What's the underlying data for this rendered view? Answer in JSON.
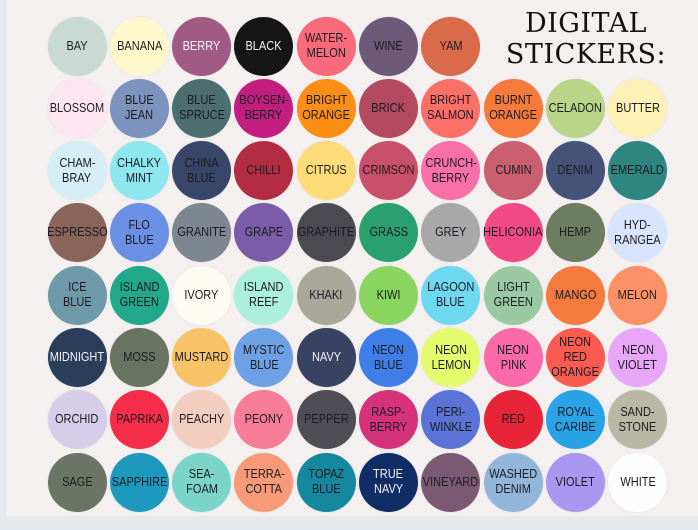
{
  "title": {
    "line1": "DIGITAL",
    "line2": "STICKERS:"
  },
  "background_color": "#f5f0f0",
  "stickers": [
    {
      "label": [
        "BAY"
      ],
      "color": "#c9d9d3"
    },
    {
      "label": [
        "BANANA"
      ],
      "color": "#fdf8cc"
    },
    {
      "label": [
        "BERRY"
      ],
      "color": "#a05a84",
      "light_text": true
    },
    {
      "label": [
        "BLACK"
      ],
      "color": "#151515",
      "light_text": true
    },
    {
      "label": [
        "WATER-",
        "MELON"
      ],
      "color": "#f96a7a"
    },
    {
      "label": [
        "WINE"
      ],
      "color": "#6d5a78"
    },
    {
      "label": [
        "YAM"
      ],
      "color": "#d96a4a"
    },
    {
      "label": [
        "BLOSSOM"
      ],
      "color": "#fde6f0"
    },
    {
      "label": [
        "BLUE",
        "JEAN"
      ],
      "color": "#7b93bd"
    },
    {
      "label": [
        "BLUE",
        "SPRUCE"
      ],
      "color": "#4d6e6e"
    },
    {
      "label": [
        "BOYSEN-",
        "BERRY"
      ],
      "color": "#c21e80"
    },
    {
      "label": [
        "BRIGHT",
        "ORANGE"
      ],
      "color": "#fb8f15"
    },
    {
      "label": [
        "BRICK"
      ],
      "color": "#b34a60"
    },
    {
      "label": [
        "BRIGHT",
        "SALMON"
      ],
      "color": "#fa6f68"
    },
    {
      "label": [
        "BURNT",
        "ORANGE"
      ],
      "color": "#f57a3c"
    },
    {
      "label": [
        "CELADON"
      ],
      "color": "#b9d58a"
    },
    {
      "label": [
        "BUTTER"
      ],
      "color": "#fdf1b7"
    },
    {
      "label": [
        "CHAM-",
        "BRAY"
      ],
      "color": "#d6eef6"
    },
    {
      "label": [
        "CHALKY",
        "MINT"
      ],
      "color": "#8ee6ee"
    },
    {
      "label": [
        "CHINA",
        "BLUE"
      ],
      "color": "#384769"
    },
    {
      "label": [
        "CHILLI"
      ],
      "color": "#b32d42"
    },
    {
      "label": [
        "CITRUS"
      ],
      "color": "#fedc7a"
    },
    {
      "label": [
        "CRIMSON"
      ],
      "color": "#c9506a"
    },
    {
      "label": [
        "CRUNCH-",
        "BERRY"
      ],
      "color": "#f870a7"
    },
    {
      "label": [
        "CUMIN"
      ],
      "color": "#c95f6f"
    },
    {
      "label": [
        "DENIM"
      ],
      "color": "#445377"
    },
    {
      "label": [
        "EMERALD"
      ],
      "color": "#2f8580"
    },
    {
      "label": [
        "ESPRESSO"
      ],
      "color": "#8a6458"
    },
    {
      "label": [
        "FLO",
        "BLUE"
      ],
      "color": "#6c8fe6"
    },
    {
      "label": [
        "GRANITE"
      ],
      "color": "#7e8690"
    },
    {
      "label": [
        "GRAPE"
      ],
      "color": "#7a5ca9"
    },
    {
      "label": [
        "GRAPHITE"
      ],
      "color": "#4a4a50"
    },
    {
      "label": [
        "GRASS"
      ],
      "color": "#2aa070"
    },
    {
      "label": [
        "GREY"
      ],
      "color": "#a8a8a8"
    },
    {
      "label": [
        "HELICONIA"
      ],
      "color": "#f04a86"
    },
    {
      "label": [
        "HEMP"
      ],
      "color": "#6e7d60"
    },
    {
      "label": [
        "HYD-",
        "RANGEA"
      ],
      "color": "#d8e4fb"
    },
    {
      "label": [
        "ICE",
        "BLUE"
      ],
      "color": "#6e99a8"
    },
    {
      "label": [
        "ISLAND",
        "GREEN"
      ],
      "color": "#22a98a"
    },
    {
      "label": [
        "IVORY"
      ],
      "color": "#fdfbf2"
    },
    {
      "label": [
        "ISLAND",
        "REEF"
      ],
      "color": "#aaf0db"
    },
    {
      "label": [
        "KHAKI"
      ],
      "color": "#a8a899"
    },
    {
      "label": [
        "KIWI"
      ],
      "color": "#8ad460"
    },
    {
      "label": [
        "LAGOON",
        "BLUE"
      ],
      "color": "#6ed8f0"
    },
    {
      "label": [
        "LIGHT",
        "GREEN"
      ],
      "color": "#9ac8a3"
    },
    {
      "label": [
        "MANGO"
      ],
      "color": "#f57a40"
    },
    {
      "label": [
        "MELON"
      ],
      "color": "#fb9166"
    },
    {
      "label": [
        "MIDNIGHT"
      ],
      "color": "#2a3e5a",
      "light_text": true
    },
    {
      "label": [
        "MOSS"
      ],
      "color": "#697362"
    },
    {
      "label": [
        "MUSTARD"
      ],
      "color": "#f8c366"
    },
    {
      "label": [
        "MYSTIC",
        "BLUE"
      ],
      "color": "#6da0e4"
    },
    {
      "label": [
        "NAVY"
      ],
      "color": "#384262",
      "light_text": true
    },
    {
      "label": [
        "NEON",
        "BLUE"
      ],
      "color": "#3f7ee6"
    },
    {
      "label": [
        "NEON",
        "LEMON"
      ],
      "color": "#e4fb6e"
    },
    {
      "label": [
        "NEON",
        "PINK"
      ],
      "color": "#fb6aa8"
    },
    {
      "label": [
        "NEON",
        "RED",
        "ORANGE"
      ],
      "color": "#fb5a50"
    },
    {
      "label": [
        "NEON",
        "VIOLET"
      ],
      "color": "#e8a6f8"
    },
    {
      "label": [
        "ORCHID"
      ],
      "color": "#d6cde8"
    },
    {
      "label": [
        "PAPRIKA"
      ],
      "color": "#f52d4a"
    },
    {
      "label": [
        "PEACHY"
      ],
      "color": "#f3cdc0"
    },
    {
      "label": [
        "PEONY"
      ],
      "color": "#f77c98"
    },
    {
      "label": [
        "PEPPER"
      ],
      "color": "#4e4e54"
    },
    {
      "label": [
        "RASP-",
        "BERRY"
      ],
      "color": "#d6327a"
    },
    {
      "label": [
        "PERI-",
        "WINKLE"
      ],
      "color": "#5b72d6"
    },
    {
      "label": [
        "RED"
      ],
      "color": "#e82438"
    },
    {
      "label": [
        "ROYAL",
        "CARIBE"
      ],
      "color": "#2aa3e6"
    },
    {
      "label": [
        "SAND-",
        "STONE"
      ],
      "color": "#b8b8a4"
    },
    {
      "label": [
        "SAGE"
      ],
      "color": "#6a7566"
    },
    {
      "label": [
        "SAPPHIRE"
      ],
      "color": "#1d99bd"
    },
    {
      "label": [
        "SEA-",
        "FOAM"
      ],
      "color": "#7ad4c8"
    },
    {
      "label": [
        "TERRA-",
        "COTTA"
      ],
      "color": "#f89a78"
    },
    {
      "label": [
        "TOPAZ",
        "BLUE"
      ],
      "color": "#14889f"
    },
    {
      "label": [
        "TRUE",
        "NAVY"
      ],
      "color": "#102d66",
      "light_text": true
    },
    {
      "label": [
        "VINEYARD"
      ],
      "color": "#7a5a72"
    },
    {
      "label": [
        "WASHED",
        "DENIM"
      ],
      "color": "#92b6da"
    },
    {
      "label": [
        "VIOLET"
      ],
      "color": "#a896f0"
    },
    {
      "label": [
        "WHITE"
      ],
      "color": "#fdfdfd"
    }
  ]
}
